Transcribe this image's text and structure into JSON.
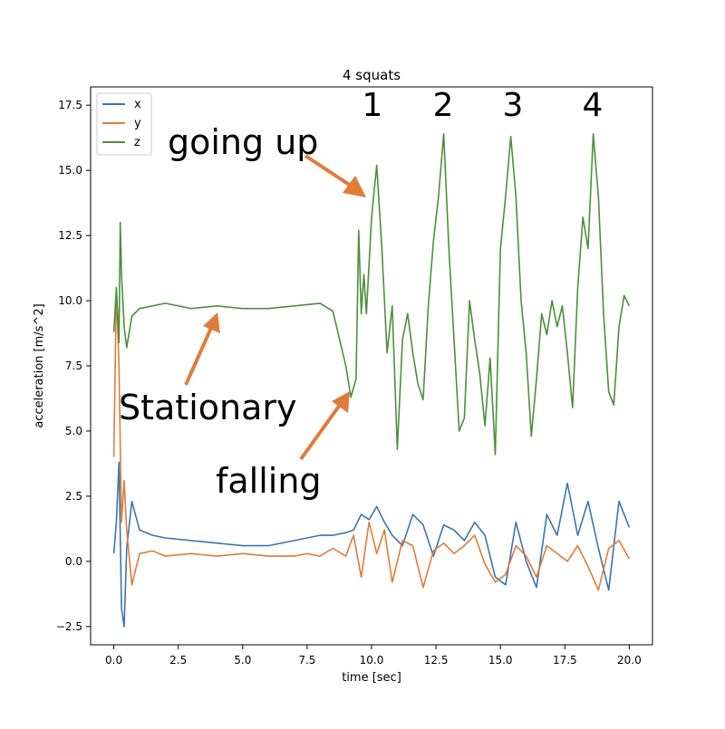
{
  "chart_data": {
    "type": "line",
    "title": "4 squats",
    "xlabel": "time [sec]",
    "ylabel": "acceleration [m/s^2]",
    "xlim": [
      -0.9,
      20.9
    ],
    "ylim": [
      -3.2,
      18.2
    ],
    "xticks": [
      0.0,
      2.5,
      5.0,
      7.5,
      10.0,
      12.5,
      15.0,
      17.5,
      20.0
    ],
    "yticks": [
      -2.5,
      0.0,
      2.5,
      5.0,
      7.5,
      10.0,
      12.5,
      15.0,
      17.5
    ],
    "xtick_labels": [
      "0.0",
      "2.5",
      "5.0",
      "7.5",
      "10.0",
      "12.5",
      "15.0",
      "17.5",
      "20.0"
    ],
    "ytick_labels": [
      "−2.5",
      "0.0",
      "2.5",
      "5.0",
      "7.5",
      "10.0",
      "12.5",
      "15.0",
      "17.5"
    ],
    "grid": false,
    "legend_position": "top-left",
    "series": [
      {
        "name": "x",
        "color": "#3b75af",
        "x": [
          0.0,
          0.1,
          0.2,
          0.3,
          0.4,
          0.5,
          0.7,
          1.0,
          1.5,
          2.0,
          3.0,
          4.0,
          5.0,
          6.0,
          7.0,
          7.5,
          8.0,
          8.5,
          9.0,
          9.3,
          9.6,
          9.9,
          10.2,
          10.5,
          10.8,
          11.2,
          11.6,
          12.0,
          12.4,
          12.8,
          13.2,
          13.6,
          14.0,
          14.4,
          14.8,
          15.2,
          15.6,
          16.0,
          16.4,
          16.8,
          17.2,
          17.6,
          18.0,
          18.4,
          18.8,
          19.2,
          19.6,
          20.0
        ],
        "y": [
          0.3,
          1.5,
          3.8,
          -1.8,
          -2.5,
          0.5,
          2.3,
          1.2,
          1.0,
          0.9,
          0.8,
          0.7,
          0.6,
          0.6,
          0.8,
          0.9,
          1.0,
          1.0,
          1.1,
          1.2,
          1.8,
          1.6,
          2.1,
          1.5,
          1.0,
          0.6,
          1.8,
          1.4,
          0.2,
          1.4,
          1.2,
          0.8,
          1.5,
          1.0,
          -0.6,
          -0.9,
          1.5,
          0.0,
          -1.0,
          1.8,
          1.0,
          3.0,
          1.0,
          2.3,
          0.5,
          -1.1,
          2.3,
          1.3
        ]
      },
      {
        "name": "y",
        "color": "#e07b3a",
        "x": [
          0.0,
          0.1,
          0.2,
          0.3,
          0.4,
          0.5,
          0.7,
          1.0,
          1.5,
          2.0,
          3.0,
          4.0,
          5.0,
          6.0,
          7.0,
          7.5,
          8.0,
          8.5,
          9.0,
          9.3,
          9.6,
          9.9,
          10.2,
          10.5,
          10.8,
          11.2,
          11.6,
          12.0,
          12.4,
          12.8,
          13.2,
          13.6,
          14.0,
          14.4,
          14.8,
          15.2,
          15.6,
          16.0,
          16.4,
          16.8,
          17.2,
          17.6,
          18.0,
          18.4,
          18.8,
          19.2,
          19.6,
          20.0
        ],
        "y": [
          4.0,
          10.5,
          7.5,
          1.5,
          3.1,
          1.2,
          -0.9,
          0.3,
          0.4,
          0.2,
          0.3,
          0.2,
          0.3,
          0.2,
          0.2,
          0.3,
          0.2,
          0.5,
          0.2,
          1.0,
          -0.6,
          1.5,
          0.3,
          1.2,
          -0.8,
          0.8,
          0.6,
          -1.0,
          0.4,
          0.7,
          0.3,
          0.6,
          1.0,
          -0.1,
          -0.8,
          -0.5,
          0.6,
          0.2,
          -0.6,
          0.6,
          0.3,
          0.0,
          0.6,
          -0.2,
          -1.1,
          0.5,
          0.8,
          0.1
        ]
      },
      {
        "name": "z",
        "color": "#4c8f3c",
        "x": [
          0.0,
          0.1,
          0.2,
          0.25,
          0.3,
          0.4,
          0.5,
          0.7,
          1.0,
          1.5,
          2.0,
          3.0,
          4.0,
          5.0,
          6.0,
          7.0,
          8.0,
          8.5,
          9.0,
          9.2,
          9.4,
          9.5,
          9.6,
          9.7,
          9.8,
          10.0,
          10.2,
          10.4,
          10.6,
          10.8,
          11.0,
          11.2,
          11.4,
          11.6,
          11.8,
          12.0,
          12.2,
          12.4,
          12.6,
          12.8,
          13.0,
          13.2,
          13.4,
          13.6,
          13.8,
          14.0,
          14.2,
          14.4,
          14.6,
          14.8,
          15.0,
          15.2,
          15.4,
          15.6,
          15.8,
          16.0,
          16.2,
          16.4,
          16.6,
          16.8,
          17.0,
          17.2,
          17.4,
          17.6,
          17.8,
          18.0,
          18.2,
          18.4,
          18.6,
          18.8,
          19.0,
          19.2,
          19.4,
          19.6,
          19.8,
          20.0
        ],
        "y": [
          8.8,
          10.5,
          8.4,
          13.0,
          11.0,
          9.0,
          8.2,
          9.4,
          9.7,
          9.8,
          9.9,
          9.7,
          9.8,
          9.7,
          9.7,
          9.8,
          9.9,
          9.6,
          7.5,
          6.3,
          7.0,
          12.7,
          9.5,
          11.0,
          9.5,
          13.2,
          15.2,
          12.0,
          8.0,
          9.8,
          4.3,
          8.5,
          9.5,
          8.0,
          6.8,
          6.2,
          9.8,
          12.3,
          14.0,
          16.4,
          12.0,
          8.5,
          5.0,
          5.5,
          10.0,
          8.5,
          7.2,
          5.2,
          7.8,
          4.1,
          12.0,
          14.0,
          16.3,
          14.0,
          10.0,
          8.0,
          4.8,
          7.0,
          9.5,
          8.7,
          10.0,
          9.0,
          9.8,
          8.0,
          5.9,
          10.5,
          13.2,
          12.0,
          16.4,
          14.0,
          9.5,
          6.5,
          6.0,
          9.0,
          10.2,
          9.8
        ]
      }
    ],
    "annotations": [
      {
        "text": "going up",
        "target": [
          9.8,
          13.5
        ]
      },
      {
        "text": "Stationary",
        "target": [
          4.0,
          9.4
        ]
      },
      {
        "text": "falling",
        "target": [
          9.2,
          6.2
        ]
      },
      {
        "text": "1",
        "x": 10.0,
        "y": 17.0
      },
      {
        "text": "2",
        "x": 12.8,
        "y": 17.0
      },
      {
        "text": "3",
        "x": 15.5,
        "y": 17.0
      },
      {
        "text": "4",
        "x": 18.6,
        "y": 17.0
      }
    ]
  }
}
